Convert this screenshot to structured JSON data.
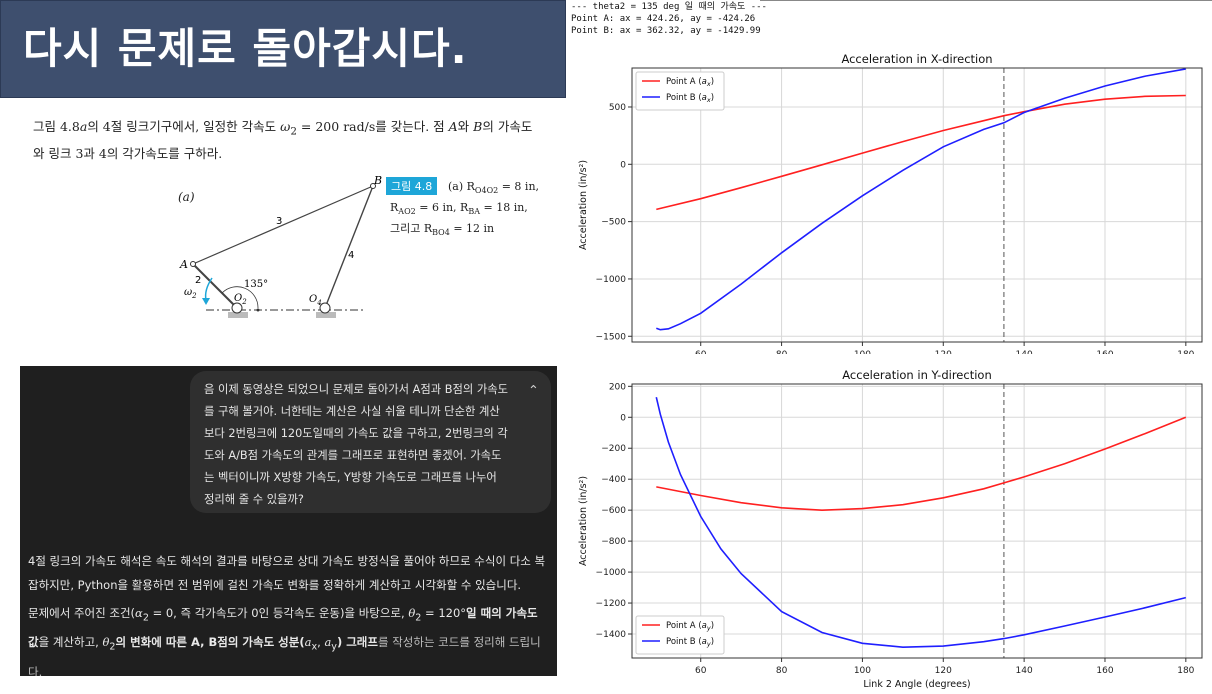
{
  "slide_title": "다시 문제로 돌아갑시다.",
  "problem": {
    "text_1": "그림 4.8",
    "a_italic": "a",
    "text_2": "의 4절 링크기구에서, 일정한 각속도 ",
    "omega": "ω",
    "omega_sub": "2",
    "text_3": " = 200 rad/s를 갖는다. 점 ",
    "A": "A",
    "text_4": "와 ",
    "B": "B",
    "text_5": "의 가속도와 링크 3과 4의 각가속도를 구하라."
  },
  "figure": {
    "label_a": "(a)",
    "badge": "그림 4.8",
    "caption_line1_a": "(a) R",
    "caption_line1_sub": "O4O2",
    "caption_line1_b": " = 8 in,",
    "caption_line2_a": "R",
    "caption_line2_sub": "AO2",
    "caption_line2_b": " = 6 in, R",
    "caption_line2_sub2": "BA",
    "caption_line2_c": " = 18 in,",
    "caption_line3_a": "그리고 R",
    "caption_line3_sub": "BO4",
    "caption_line3_b": " = 12 in",
    "point_A": "A",
    "point_B": "B",
    "link_2": "2",
    "link_3": "3",
    "link_4": "4",
    "angle": "135°",
    "omega": "ω",
    "omega_sub": "2",
    "O2": "O",
    "O2_sub": "2",
    "O4": "O",
    "O4_sub": "4"
  },
  "chat": {
    "user_message": "음 이제 동영상은 되었으니 문제로 돌아가서 A점과 B점의 가속도를 구해 볼거야. 너한테는 계산은 사실 쉬울 테니까 단순한 계산보다 2번링크에 120도일때의 가속도 값을 구하고, 2번링크의 각도와 A/B점 가속도의 관계를 그래프로 표현하면 좋겠어. 가속도는 벡터이니까 X방향 가속도, Y방향 가속도로 그래프를 나누어 정리해 줄 수 있을까?",
    "reply_1": "4절 링크의 가속도 해석은 속도 해석의 결과를 바탕으로 상대 가속도 방정식을 풀어야 하므로 수식이 다소 복잡하지만, Python을 활용하면 전 범위에 걸친 가속도 변화를 정확하게 계산하고 시각화할 수 있습니다.",
    "reply_2_a": "문제에서 주어진 조건(",
    "reply_2_alpha": "α",
    "reply_2_alpha_sub": "2",
    "reply_2_b": " = 0, 즉 각가속도가 0인 등각속도 운동)을 바탕으로, ",
    "reply_2_theta": "θ",
    "reply_2_theta_sub": "2",
    "reply_2_c": " = 120°",
    "reply_2_bold1": "일 때의 가속도 값",
    "reply_2_d": "을 계산하고, ",
    "reply_2_theta2": "θ",
    "reply_2_theta2_sub": "2",
    "reply_2_bold2": "의 변화에 따른 A, B점의 가속도 성분(",
    "reply_2_ax": "a",
    "reply_2_ax_sub": "x",
    "reply_2_comma": ", ",
    "reply_2_ay": "a",
    "reply_2_ay_sub": "y",
    "reply_2_bold3": ") 그래프",
    "reply_2_e": "를 작성하는 코드를 정리해 드립니다."
  },
  "console": {
    "line1": "--- theta2 = 135 deg 일 때의 가속도 ---",
    "line2": "Point A: ax = 424.26, ay = -424.26",
    "line3": "Point B: ax = 362.32, ay = -1429.99"
  },
  "colors": {
    "point_a": "#ff2020",
    "point_b": "#1f1fff",
    "title_bg": "#3e4f6e",
    "chat_bg": "#1f1f1f",
    "bubble_bg": "#2f2f2f",
    "badge": "#1ea6d8"
  },
  "chart_data": [
    {
      "type": "line",
      "title": "Acceleration in X-direction",
      "xlabel": "",
      "ylabel": "Acceleration (in/s²)",
      "xlim": [
        43,
        184
      ],
      "ylim": [
        -1550,
        840
      ],
      "xticks": [
        60,
        80,
        100,
        120,
        140,
        160,
        180
      ],
      "yticks": [
        -1500,
        -1000,
        -500,
        0,
        500
      ],
      "grid": true,
      "legend": "top-left",
      "vline": 135,
      "series": [
        {
          "name": "Point A (a_x)",
          "legend_label": "Point A (",
          "legend_sub": "x",
          "color": "#ff2020",
          "x": [
            49,
            60,
            70,
            80,
            90,
            100,
            110,
            120,
            130,
            135,
            140,
            150,
            160,
            170,
            180
          ],
          "y": [
            -393,
            -300,
            -204,
            -105,
            -4,
            98,
            198,
            295,
            380,
            424,
            459,
            524,
            568,
            593,
            600
          ]
        },
        {
          "name": "Point B (a_x)",
          "legend_label": "Point B (",
          "legend_sub": "x",
          "color": "#1f1fff",
          "x": [
            49,
            50,
            52,
            55,
            60,
            70,
            80,
            90,
            100,
            110,
            120,
            130,
            135,
            140,
            150,
            160,
            170,
            180
          ],
          "y": [
            -1430,
            -1443,
            -1435,
            -1390,
            -1300,
            -1045,
            -772,
            -515,
            -275,
            -52,
            153,
            304,
            362,
            452,
            577,
            683,
            769,
            832
          ]
        }
      ]
    },
    {
      "type": "line",
      "title": "Acceleration in Y-direction",
      "xlabel": "Link 2 Angle (degrees)",
      "ylabel": "Acceleration (in/s²)",
      "xlim": [
        43,
        184
      ],
      "ylim": [
        -1555,
        215
      ],
      "xticks": [
        60,
        80,
        100,
        120,
        140,
        160,
        180
      ],
      "yticks": [
        -1400,
        -1200,
        -1000,
        -800,
        -600,
        -400,
        -200,
        0,
        200
      ],
      "grid": true,
      "legend": "bottom-left",
      "vline": 135,
      "series": [
        {
          "name": "Point A (a_y)",
          "legend_label": "Point A (",
          "legend_sub": "y",
          "color": "#ff2020",
          "x": [
            49,
            60,
            70,
            80,
            90,
            100,
            110,
            120,
            130,
            135,
            140,
            150,
            160,
            170,
            180
          ],
          "y": [
            -450,
            -505,
            -552,
            -585,
            -600,
            -590,
            -565,
            -520,
            -462,
            -424,
            -385,
            -300,
            -205,
            -105,
            0
          ]
        },
        {
          "name": "Point B (a_y)",
          "legend_label": "Point B (",
          "legend_sub": "y",
          "color": "#1f1fff",
          "x": [
            49,
            50,
            52,
            55,
            60,
            65,
            70,
            80,
            90,
            100,
            110,
            120,
            130,
            135,
            140,
            150,
            160,
            170,
            180
          ],
          "y": [
            130,
            20,
            -160,
            -370,
            -640,
            -850,
            -1010,
            -1255,
            -1390,
            -1460,
            -1485,
            -1478,
            -1450,
            -1430,
            -1405,
            -1348,
            -1290,
            -1230,
            -1165
          ]
        }
      ]
    }
  ]
}
